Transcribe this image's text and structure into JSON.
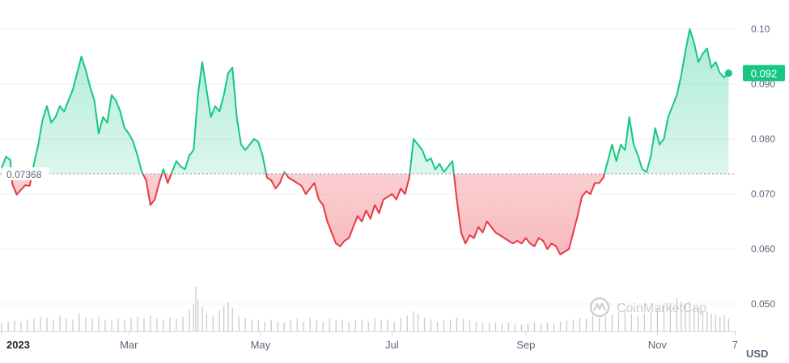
{
  "chart_data": {
    "type": "line",
    "title": "",
    "xlabel": "",
    "ylabel": "",
    "currency_label": "USD",
    "watermark": "CoinMarketCap",
    "baseline": {
      "value": 0.07368,
      "label": "0.07368"
    },
    "current": {
      "value": 0.092,
      "label": "0.092"
    },
    "ylim": [
      0.045,
      0.105
    ],
    "y_ticks": [
      {
        "value": 0.05,
        "label": "0.050"
      },
      {
        "value": 0.06,
        "label": "0.060"
      },
      {
        "value": 0.07,
        "label": "0.070"
      },
      {
        "value": 0.08,
        "label": "0.080"
      },
      {
        "value": 0.09,
        "label": "0.090"
      },
      {
        "value": 0.1,
        "label": "0.10"
      }
    ],
    "xlim": [
      0,
      338
    ],
    "x_ticks": [
      {
        "day": 0,
        "label": "2023",
        "bold": true
      },
      {
        "day": 59,
        "label": "Mar",
        "bold": false
      },
      {
        "day": 120,
        "label": "May",
        "bold": false
      },
      {
        "day": 181,
        "label": "Jul",
        "bold": false
      },
      {
        "day": 243,
        "label": "Sep",
        "bold": false
      },
      {
        "day": 304,
        "label": "Nov",
        "bold": false
      },
      {
        "day": 340,
        "label": "7",
        "bold": false
      }
    ],
    "up_color": "#16c784",
    "down_color": "#ea3943",
    "price": [
      [
        0,
        0.0747
      ],
      [
        2,
        0.0768
      ],
      [
        4,
        0.0762
      ],
      [
        5,
        0.0718
      ],
      [
        7,
        0.0699
      ],
      [
        9,
        0.0708
      ],
      [
        11,
        0.0716
      ],
      [
        13,
        0.0715
      ],
      [
        15,
        0.0755
      ],
      [
        17,
        0.079
      ],
      [
        19,
        0.0835
      ],
      [
        21,
        0.086
      ],
      [
        23,
        0.083
      ],
      [
        25,
        0.084
      ],
      [
        27,
        0.086
      ],
      [
        29,
        0.085
      ],
      [
        31,
        0.087
      ],
      [
        33,
        0.089
      ],
      [
        35,
        0.092
      ],
      [
        37,
        0.095
      ],
      [
        39,
        0.0925
      ],
      [
        41,
        0.0895
      ],
      [
        43,
        0.087
      ],
      [
        45,
        0.081
      ],
      [
        47,
        0.084
      ],
      [
        49,
        0.083
      ],
      [
        51,
        0.088
      ],
      [
        53,
        0.087
      ],
      [
        55,
        0.085
      ],
      [
        57,
        0.082
      ],
      [
        59,
        0.081
      ],
      [
        61,
        0.0795
      ],
      [
        63,
        0.077
      ],
      [
        65,
        0.074
      ],
      [
        67,
        0.0725
      ],
      [
        69,
        0.068
      ],
      [
        71,
        0.069
      ],
      [
        73,
        0.072
      ],
      [
        75,
        0.0745
      ],
      [
        77,
        0.072
      ],
      [
        79,
        0.074
      ],
      [
        81,
        0.076
      ],
      [
        83,
        0.075
      ],
      [
        85,
        0.0745
      ],
      [
        87,
        0.077
      ],
      [
        89,
        0.078
      ],
      [
        91,
        0.088
      ],
      [
        93,
        0.094
      ],
      [
        95,
        0.089
      ],
      [
        97,
        0.084
      ],
      [
        99,
        0.086
      ],
      [
        101,
        0.085
      ],
      [
        103,
        0.088
      ],
      [
        105,
        0.092
      ],
      [
        107,
        0.093
      ],
      [
        109,
        0.084
      ],
      [
        111,
        0.079
      ],
      [
        113,
        0.078
      ],
      [
        115,
        0.079
      ],
      [
        117,
        0.08
      ],
      [
        119,
        0.0795
      ],
      [
        121,
        0.077
      ],
      [
        123,
        0.073
      ],
      [
        125,
        0.0725
      ],
      [
        127,
        0.071
      ],
      [
        129,
        0.072
      ],
      [
        131,
        0.074
      ],
      [
        133,
        0.073
      ],
      [
        135,
        0.0725
      ],
      [
        137,
        0.072
      ],
      [
        139,
        0.0715
      ],
      [
        141,
        0.07
      ],
      [
        143,
        0.071
      ],
      [
        145,
        0.072
      ],
      [
        147,
        0.069
      ],
      [
        149,
        0.068
      ],
      [
        151,
        0.065
      ],
      [
        153,
        0.063
      ],
      [
        155,
        0.061
      ],
      [
        157,
        0.0605
      ],
      [
        159,
        0.0615
      ],
      [
        161,
        0.062
      ],
      [
        163,
        0.064
      ],
      [
        165,
        0.066
      ],
      [
        167,
        0.065
      ],
      [
        169,
        0.067
      ],
      [
        171,
        0.0655
      ],
      [
        173,
        0.068
      ],
      [
        175,
        0.0665
      ],
      [
        177,
        0.069
      ],
      [
        179,
        0.0695
      ],
      [
        181,
        0.07
      ],
      [
        183,
        0.069
      ],
      [
        185,
        0.071
      ],
      [
        187,
        0.07
      ],
      [
        189,
        0.073
      ],
      [
        191,
        0.08
      ],
      [
        193,
        0.079
      ],
      [
        195,
        0.078
      ],
      [
        197,
        0.076
      ],
      [
        199,
        0.0765
      ],
      [
        201,
        0.0745
      ],
      [
        203,
        0.0755
      ],
      [
        205,
        0.074
      ],
      [
        207,
        0.075
      ],
      [
        209,
        0.076
      ],
      [
        211,
        0.069
      ],
      [
        213,
        0.063
      ],
      [
        215,
        0.061
      ],
      [
        217,
        0.0625
      ],
      [
        219,
        0.062
      ],
      [
        221,
        0.064
      ],
      [
        223,
        0.063
      ],
      [
        225,
        0.065
      ],
      [
        227,
        0.064
      ],
      [
        229,
        0.063
      ],
      [
        231,
        0.0625
      ],
      [
        233,
        0.062
      ],
      [
        235,
        0.0615
      ],
      [
        237,
        0.061
      ],
      [
        239,
        0.0615
      ],
      [
        241,
        0.061
      ],
      [
        243,
        0.062
      ],
      [
        245,
        0.061
      ],
      [
        247,
        0.0605
      ],
      [
        249,
        0.062
      ],
      [
        251,
        0.0615
      ],
      [
        253,
        0.06
      ],
      [
        255,
        0.061
      ],
      [
        257,
        0.0605
      ],
      [
        259,
        0.059
      ],
      [
        261,
        0.0595
      ],
      [
        263,
        0.06
      ],
      [
        265,
        0.063
      ],
      [
        267,
        0.066
      ],
      [
        269,
        0.0695
      ],
      [
        271,
        0.0705
      ],
      [
        273,
        0.07
      ],
      [
        275,
        0.072
      ],
      [
        277,
        0.072
      ],
      [
        279,
        0.073
      ],
      [
        281,
        0.076
      ],
      [
        283,
        0.079
      ],
      [
        285,
        0.076
      ],
      [
        287,
        0.079
      ],
      [
        289,
        0.078
      ],
      [
        291,
        0.084
      ],
      [
        293,
        0.079
      ],
      [
        295,
        0.077
      ],
      [
        297,
        0.0745
      ],
      [
        299,
        0.074
      ],
      [
        301,
        0.077
      ],
      [
        303,
        0.082
      ],
      [
        305,
        0.079
      ],
      [
        307,
        0.08
      ],
      [
        309,
        0.084
      ],
      [
        311,
        0.086
      ],
      [
        313,
        0.088
      ],
      [
        315,
        0.0915
      ],
      [
        317,
        0.096
      ],
      [
        319,
        0.1
      ],
      [
        321,
        0.0975
      ],
      [
        323,
        0.094
      ],
      [
        325,
        0.0955
      ],
      [
        327,
        0.0965
      ],
      [
        329,
        0.093
      ],
      [
        331,
        0.094
      ],
      [
        333,
        0.092
      ],
      [
        335,
        0.0912
      ],
      [
        337,
        0.092
      ]
    ],
    "volume": [
      [
        0,
        0.9
      ],
      [
        3,
        1.0
      ],
      [
        6,
        1.1
      ],
      [
        9,
        1.0
      ],
      [
        12,
        1.2
      ],
      [
        15,
        1.3
      ],
      [
        18,
        1.5
      ],
      [
        21,
        1.4
      ],
      [
        24,
        1.2
      ],
      [
        27,
        1.6
      ],
      [
        30,
        1.3
      ],
      [
        33,
        1.2
      ],
      [
        36,
        1.8
      ],
      [
        39,
        1.4
      ],
      [
        42,
        1.3
      ],
      [
        45,
        1.5
      ],
      [
        48,
        1.2
      ],
      [
        51,
        1.1
      ],
      [
        54,
        1.3
      ],
      [
        57,
        1.2
      ],
      [
        60,
        1.4
      ],
      [
        63,
        1.5
      ],
      [
        66,
        1.3
      ],
      [
        69,
        1.6
      ],
      [
        72,
        1.3
      ],
      [
        75,
        1.2
      ],
      [
        78,
        1.4
      ],
      [
        81,
        1.3
      ],
      [
        84,
        1.5
      ],
      [
        87,
        2.2
      ],
      [
        89,
        2.8
      ],
      [
        90,
        4.5
      ],
      [
        91,
        3.2
      ],
      [
        93,
        2.5
      ],
      [
        95,
        1.8
      ],
      [
        98,
        1.6
      ],
      [
        101,
        2.1
      ],
      [
        103,
        2.6
      ],
      [
        105,
        3.0
      ],
      [
        107,
        2.4
      ],
      [
        110,
        1.5
      ],
      [
        113,
        1.4
      ],
      [
        116,
        1.2
      ],
      [
        119,
        1.1
      ],
      [
        122,
        1.0
      ],
      [
        125,
        1.2
      ],
      [
        128,
        1.0
      ],
      [
        131,
        0.9
      ],
      [
        134,
        1.1
      ],
      [
        137,
        1.3
      ],
      [
        140,
        1.0
      ],
      [
        143,
        1.4
      ],
      [
        146,
        1.1
      ],
      [
        149,
        1.0
      ],
      [
        152,
        1.3
      ],
      [
        155,
        1.1
      ],
      [
        158,
        1.2
      ],
      [
        161,
        1.0
      ],
      [
        164,
        1.1
      ],
      [
        167,
        1.2
      ],
      [
        170,
        1.0
      ],
      [
        173,
        1.3
      ],
      [
        176,
        1.1
      ],
      [
        179,
        1.2
      ],
      [
        182,
        1.0
      ],
      [
        185,
        1.4
      ],
      [
        188,
        1.6
      ],
      [
        191,
        2.0
      ],
      [
        193,
        1.8
      ],
      [
        196,
        1.4
      ],
      [
        199,
        1.2
      ],
      [
        202,
        1.0
      ],
      [
        205,
        1.1
      ],
      [
        208,
        1.2
      ],
      [
        211,
        1.4
      ],
      [
        214,
        1.3
      ],
      [
        217,
        1.1
      ],
      [
        220,
        1.0
      ],
      [
        223,
        0.9
      ],
      [
        226,
        0.8
      ],
      [
        229,
        0.9
      ],
      [
        232,
        0.8
      ],
      [
        235,
        0.9
      ],
      [
        238,
        0.8
      ],
      [
        241,
        0.7
      ],
      [
        244,
        0.8
      ],
      [
        247,
        0.9
      ],
      [
        250,
        0.8
      ],
      [
        253,
        0.9
      ],
      [
        256,
        0.8
      ],
      [
        259,
        1.0
      ],
      [
        262,
        1.1
      ],
      [
        265,
        1.2
      ],
      [
        268,
        1.4
      ],
      [
        271,
        1.3
      ],
      [
        274,
        1.6
      ],
      [
        277,
        1.4
      ],
      [
        280,
        1.5
      ],
      [
        283,
        1.7
      ],
      [
        286,
        1.9
      ],
      [
        289,
        2.1
      ],
      [
        292,
        1.8
      ],
      [
        295,
        1.6
      ],
      [
        298,
        1.8
      ],
      [
        301,
        2.0
      ],
      [
        304,
        2.3
      ],
      [
        307,
        2.6
      ],
      [
        310,
        2.9
      ],
      [
        313,
        3.4
      ],
      [
        315,
        3.0
      ],
      [
        317,
        2.7
      ],
      [
        319,
        3.1
      ],
      [
        321,
        2.6
      ],
      [
        323,
        2.4
      ],
      [
        325,
        2.1
      ],
      [
        327,
        2.0
      ],
      [
        329,
        1.8
      ],
      [
        331,
        1.7
      ],
      [
        333,
        1.5
      ],
      [
        335,
        1.6
      ],
      [
        337,
        1.3
      ]
    ],
    "volume_max": 4.5,
    "grid": true,
    "legend": "none"
  }
}
